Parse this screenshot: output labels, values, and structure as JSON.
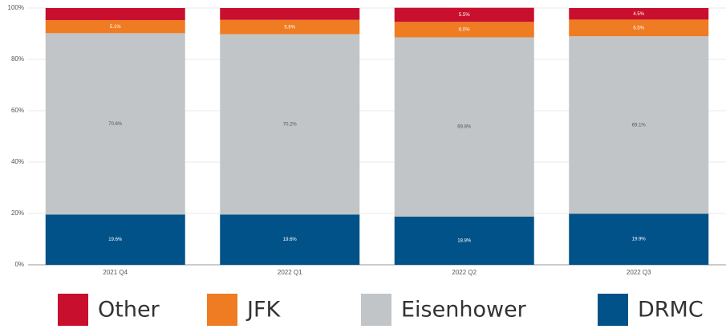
{
  "chart_data": {
    "type": "stacked_bar",
    "categories": [
      "2021 Q4",
      "2022 Q1",
      "2022 Q2",
      "2022 Q3"
    ],
    "series": [
      {
        "name": "DRMC",
        "color": "#005288",
        "values": [
          19.6,
          19.6,
          18.8,
          19.9
        ],
        "value_labels": [
          "19.6%",
          "19.6%",
          "18.8%",
          "19.9%"
        ]
      },
      {
        "name": "Eisenhower",
        "color": "#c1c5c8",
        "values": [
          70.6,
          70.2,
          69.8,
          69.1
        ],
        "value_labels": [
          "70.6%",
          "70.2%",
          "69.8%",
          "69.1%"
        ]
      },
      {
        "name": "JFK",
        "color": "#ef7b22",
        "values": [
          5.1,
          5.6,
          6.0,
          6.5
        ],
        "value_labels": [
          "5.1%",
          "5.6%",
          "6.0%",
          "6.5%"
        ]
      },
      {
        "name": "Other",
        "color": "#c8102e",
        "values": [
          4.7,
          4.6,
          5.5,
          4.5
        ],
        "value_labels": [
          null,
          null,
          "5.5%",
          "4.5%"
        ]
      }
    ],
    "ylim": [
      0,
      100
    ],
    "yticks": [
      {
        "value": 0,
        "label": "0%"
      },
      {
        "value": 20,
        "label": "20%"
      },
      {
        "value": 40,
        "label": "40%"
      },
      {
        "value": 60,
        "label": "60%"
      },
      {
        "value": 80,
        "label": "80%"
      },
      {
        "value": 100,
        "label": "100%"
      }
    ],
    "grid": true
  }
}
